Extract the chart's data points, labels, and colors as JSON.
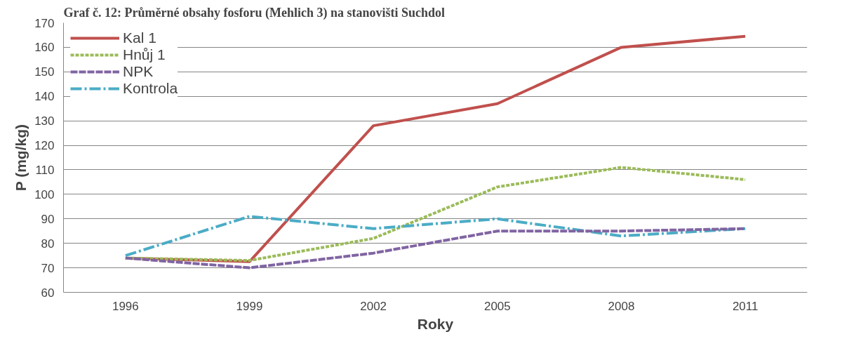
{
  "chart_data": {
    "type": "line",
    "title": "Graf č. 12: Průměrné obsahy fosforu (Mehlich 3) na stanovišti Suchdol",
    "xlabel": "Roky",
    "ylabel": "P (mg/kg)",
    "categories": [
      "1996",
      "1999",
      "2002",
      "2005",
      "2008",
      "2011"
    ],
    "series": [
      {
        "name": "Kal 1",
        "color": "#c0504d",
        "line_style": "solid",
        "values": [
          74,
          72.5,
          128,
          137,
          160,
          164.5
        ]
      },
      {
        "name": "Hnůj 1",
        "color": "#9bbb59",
        "line_style": "dotted",
        "values": [
          74,
          73,
          82,
          103,
          111,
          106
        ]
      },
      {
        "name": "NPK",
        "color": "#8064a2",
        "line_style": "dashed",
        "values": [
          74,
          70,
          76,
          85,
          85,
          86
        ]
      },
      {
        "name": "Kontrola",
        "color": "#4bacc6",
        "line_style": "dashdot",
        "values": [
          75,
          91,
          86,
          90,
          83,
          86
        ]
      }
    ],
    "ylim": [
      60,
      170
    ],
    "yticks": [
      60,
      70,
      80,
      90,
      100,
      110,
      120,
      130,
      140,
      150,
      160,
      170
    ],
    "grid": "y",
    "legend": "top left"
  }
}
